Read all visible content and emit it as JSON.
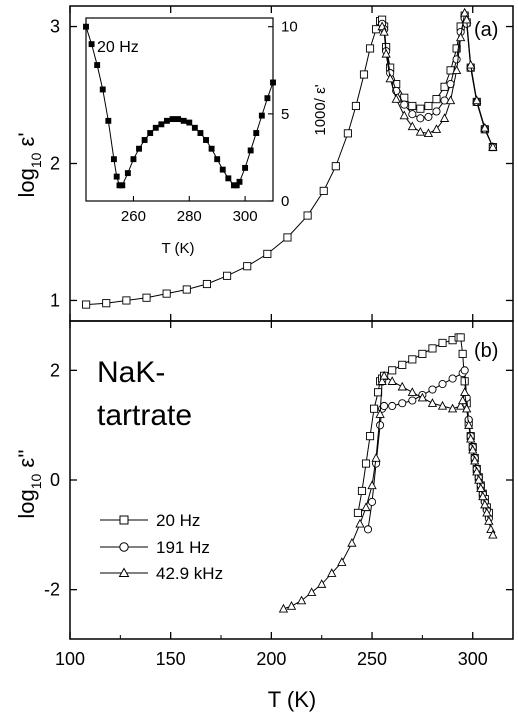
{
  "chart_data": [
    {
      "panel": "(a)",
      "type": "line",
      "ylabel": "log10 ε'",
      "xlabel": "T (K)",
      "xlim": [
        100,
        320
      ],
      "ylim": [
        0.85,
        3.15
      ],
      "yticks": [
        1,
        2,
        3
      ],
      "series": [
        {
          "name": "20 Hz",
          "marker": "square",
          "x": [
            108,
            118,
            128,
            138,
            148,
            158,
            168,
            178,
            188,
            198,
            208,
            218,
            226,
            232,
            238,
            242,
            246,
            249,
            252,
            254,
            255,
            256,
            257,
            259,
            262,
            266,
            270,
            274,
            278,
            282,
            286,
            289,
            292,
            294,
            296,
            297,
            299,
            302,
            306,
            310
          ],
          "y": [
            0.97,
            0.98,
            1.0,
            1.02,
            1.05,
            1.08,
            1.12,
            1.18,
            1.25,
            1.34,
            1.46,
            1.62,
            1.8,
            1.98,
            2.22,
            2.42,
            2.65,
            2.84,
            2.98,
            3.04,
            3.05,
            3.0,
            2.85,
            2.7,
            2.58,
            2.48,
            2.42,
            2.4,
            2.42,
            2.47,
            2.56,
            2.68,
            2.84,
            3.0,
            3.08,
            3.03,
            2.7,
            2.45,
            2.25,
            2.12
          ]
        },
        {
          "name": "191 Hz",
          "marker": "circle",
          "x": [
            255,
            256,
            257,
            259,
            262,
            266,
            270,
            274,
            278,
            282,
            286,
            289,
            292,
            294,
            296,
            297,
            299,
            302,
            306,
            310
          ],
          "y": [
            3.02,
            2.98,
            2.82,
            2.66,
            2.53,
            2.43,
            2.36,
            2.33,
            2.34,
            2.38,
            2.46,
            2.58,
            2.76,
            2.96,
            3.06,
            3.02,
            2.7,
            2.45,
            2.25,
            2.12
          ]
        },
        {
          "name": "42.9 kHz",
          "marker": "triangle",
          "x": [
            255,
            256,
            257,
            259,
            262,
            266,
            270,
            274,
            278,
            282,
            286,
            289,
            292,
            294,
            296,
            297,
            299,
            302,
            306,
            310
          ],
          "y": [
            3.0,
            2.96,
            2.8,
            2.62,
            2.47,
            2.35,
            2.27,
            2.23,
            2.22,
            2.25,
            2.33,
            2.46,
            2.68,
            2.92,
            3.1,
            3.05,
            2.72,
            2.46,
            2.26,
            2.12
          ]
        }
      ]
    },
    {
      "panel": "inset",
      "type": "line",
      "label": "20 Hz",
      "xlabel": "T (K)",
      "ylabel": "1000/ ε'",
      "xlim": [
        243,
        310
      ],
      "ylim": [
        0,
        10.5
      ],
      "xticks": [
        260,
        280,
        300
      ],
      "yticks": [
        0,
        5,
        10
      ],
      "series": [
        {
          "name": "20 Hz",
          "marker": "square",
          "x": [
            243,
            245,
            247,
            249,
            251,
            253,
            254,
            255,
            256,
            258,
            260,
            262,
            264,
            266,
            268,
            270,
            272,
            274,
            276,
            278,
            280,
            282,
            284,
            286,
            288,
            290,
            292,
            294,
            296,
            297,
            298,
            300,
            302,
            304,
            306,
            308,
            310
          ],
          "y": [
            10,
            9.0,
            7.8,
            6.4,
            4.6,
            2.4,
            1.4,
            0.9,
            0.9,
            1.6,
            2.4,
            3.0,
            3.5,
            3.9,
            4.2,
            4.4,
            4.6,
            4.7,
            4.7,
            4.6,
            4.5,
            4.2,
            3.9,
            3.5,
            3.0,
            2.4,
            1.8,
            1.3,
            0.9,
            0.9,
            1.1,
            1.9,
            2.9,
            3.9,
            4.9,
            5.9,
            6.8
          ]
        }
      ]
    },
    {
      "panel": "(b)",
      "type": "line",
      "ylabel": "log10 ε''",
      "xlabel": "T (K)",
      "xlim": [
        100,
        320
      ],
      "ylim": [
        -2.9,
        2.9
      ],
      "xticks": [
        100,
        150,
        200,
        250,
        300
      ],
      "yticks": [
        -2,
        0,
        2
      ],
      "series": [
        {
          "name": "20 Hz",
          "marker": "square",
          "x": [
            243,
            245,
            247,
            249,
            251,
            253,
            254,
            255,
            256,
            260,
            265,
            270,
            275,
            280,
            285,
            290,
            293,
            294,
            295,
            296,
            297,
            298,
            299,
            300,
            301,
            302,
            303,
            304,
            305,
            306,
            307,
            308
          ],
          "y": [
            -0.6,
            -0.2,
            0.3,
            0.8,
            1.3,
            1.6,
            1.8,
            1.85,
            1.9,
            2.0,
            2.1,
            2.2,
            2.3,
            2.4,
            2.5,
            2.55,
            2.6,
            2.6,
            2.3,
            1.8,
            1.4,
            1.05,
            0.8,
            0.6,
            0.4,
            0.2,
            0.05,
            -0.1,
            -0.25,
            -0.35,
            -0.5,
            -0.6
          ]
        },
        {
          "name": "191 Hz",
          "marker": "circle",
          "x": [
            248,
            250,
            252,
            254,
            255,
            256,
            260,
            265,
            270,
            275,
            280,
            285,
            290,
            295,
            296,
            297,
            298,
            299,
            300,
            301,
            302,
            303,
            304,
            305,
            306,
            307,
            308
          ],
          "y": [
            -0.9,
            -0.4,
            0.3,
            1.0,
            1.3,
            1.35,
            1.35,
            1.4,
            1.45,
            1.55,
            1.65,
            1.75,
            1.85,
            1.95,
            2.0,
            1.5,
            1.1,
            0.8,
            0.6,
            0.4,
            0.2,
            0.05,
            -0.1,
            -0.25,
            -0.4,
            -0.55,
            -0.7
          ]
        },
        {
          "name": "42.9 kHz",
          "marker": "triangle",
          "x": [
            206,
            210,
            215,
            220,
            225,
            230,
            235,
            240,
            244,
            247,
            250,
            252,
            254,
            255,
            256,
            260,
            265,
            270,
            275,
            280,
            285,
            290,
            294,
            295,
            296,
            297,
            298,
            299,
            300,
            301,
            302,
            303,
            304,
            305,
            306,
            307,
            308,
            309,
            310
          ],
          "y": [
            -2.35,
            -2.3,
            -2.2,
            -2.05,
            -1.9,
            -1.7,
            -1.5,
            -1.15,
            -0.8,
            -0.5,
            -0.1,
            0.4,
            1.2,
            1.8,
            1.9,
            1.8,
            1.7,
            1.6,
            1.5,
            1.4,
            1.35,
            1.3,
            1.35,
            1.45,
            1.6,
            1.3,
            1.0,
            0.75,
            0.55,
            0.35,
            0.15,
            0.0,
            -0.15,
            -0.3,
            -0.45,
            -0.6,
            -0.75,
            -0.9,
            -1.0
          ]
        }
      ]
    }
  ],
  "labels": {
    "panel_a": "(a)",
    "panel_b": "(b)",
    "inset_freq": "20 Hz",
    "material_line1": "NaK-",
    "material_line2": "tartrate",
    "xlabel_main": "T (K)",
    "xlabel_inset": "T (K)",
    "ylabel_a_base": "log",
    "ylabel_a_sub": "10",
    "ylabel_a_sym": " ε'",
    "ylabel_b_base": "log",
    "ylabel_b_sub": "10",
    "ylabel_b_sym": " ε''",
    "ylabel_inset": "1000/ ε'"
  }
}
